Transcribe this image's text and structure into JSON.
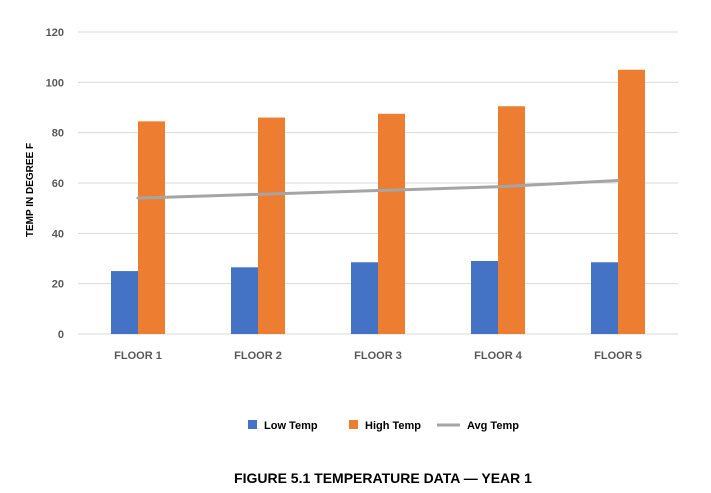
{
  "chart_data": {
    "type": "bar",
    "title": "FIGURE 5.1  TEMPERATURE DATA — YEAR 1",
    "xlabel": "",
    "ylabel": "TEMP IN DEGREE F",
    "ylim": [
      0,
      120
    ],
    "yticks": [
      0,
      20,
      40,
      60,
      80,
      100,
      120
    ],
    "grid": true,
    "legend_position": "bottom",
    "categories": [
      "FLOOR 1",
      "FLOOR 2",
      "FLOOR 3",
      "FLOOR 4",
      "FLOOR 5"
    ],
    "series": [
      {
        "name": "Low Temp",
        "type": "bar",
        "color": "#4472c4",
        "values": [
          25,
          26.5,
          28.5,
          29,
          28.5
        ]
      },
      {
        "name": "High Temp",
        "type": "bar",
        "color": "#ed7d31",
        "values": [
          84.5,
          86,
          87.5,
          90.5,
          105
        ]
      },
      {
        "name": "Avg Temp",
        "type": "line",
        "color": "#a5a5a5",
        "values": [
          54,
          55.5,
          57,
          58.5,
          61
        ]
      }
    ]
  }
}
